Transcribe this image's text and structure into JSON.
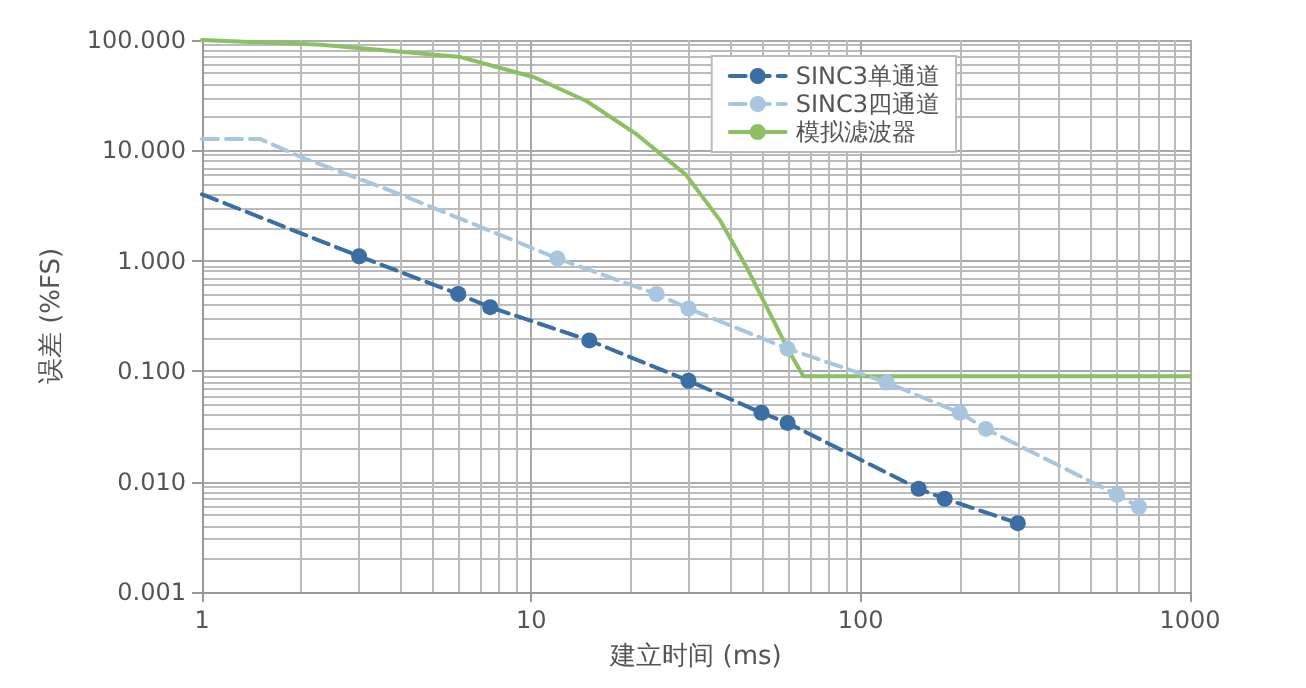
{
  "chart_data": {
    "type": "line",
    "xlabel": "建立时间 (ms)",
    "ylabel": "误差 (%FS)",
    "log": "xy",
    "xlim": [
      1,
      1000
    ],
    "ylim": [
      0.001,
      100
    ],
    "xticks": [
      1,
      10,
      100,
      1000
    ],
    "yticks": [
      {
        "value": 100,
        "label": "100.000"
      },
      {
        "value": 10,
        "label": "10.000"
      },
      {
        "value": 1,
        "label": "1.000"
      },
      {
        "value": 0.1,
        "label": "0.100"
      },
      {
        "value": 0.01,
        "label": "0.010"
      },
      {
        "value": 0.001,
        "label": "0.001"
      }
    ],
    "grid": true,
    "legend": "top right",
    "series": [
      {
        "name": "SINC3单通道",
        "color": "#3a6ea5",
        "marker": "circle",
        "line_style": "dashed",
        "x": [
          3,
          6,
          7.5,
          15,
          30,
          50,
          60,
          150,
          180,
          300
        ],
        "values": [
          1.1,
          0.5,
          0.38,
          0.19,
          0.082,
          0.042,
          0.034,
          0.0086,
          0.007,
          0.0042
        ]
      },
      {
        "name": "SINC3四通道",
        "color": "#a9c6e0",
        "marker": "circle",
        "line_style": "dashed",
        "x": [
          12,
          24,
          30,
          60,
          120,
          200,
          240,
          600,
          700
        ],
        "values": [
          1.05,
          0.5,
          0.37,
          0.16,
          0.079,
          0.042,
          0.03,
          0.0076,
          0.0059
        ]
      },
      {
        "name": "模拟滤波器",
        "color": "#8cc063",
        "marker": "none",
        "line_style": "solid",
        "x": [
          1,
          2.3,
          6.1,
          10.2,
          14.7,
          21,
          29.5,
          37.5,
          45,
          60,
          67,
          1000
        ],
        "values": [
          100,
          90.5,
          70,
          46,
          28,
          13.8,
          6,
          2.3,
          0.88,
          0.16,
          0.09,
          0.09
        ]
      },
      {
        "color": "#3a6ea5",
        "marker": "none",
        "line_style": "dashed",
        "x": [
          1,
          3
        ],
        "values": [
          4,
          1.1
        ]
      },
      {
        "color": "#a9c6e0",
        "marker": "none",
        "line_style": "dashed",
        "x": [
          1,
          1.5,
          2,
          4,
          7.5,
          12
        ],
        "values": [
          12.7,
          12.7,
          8.7,
          4,
          1.87,
          1.05
        ]
      }
    ]
  }
}
